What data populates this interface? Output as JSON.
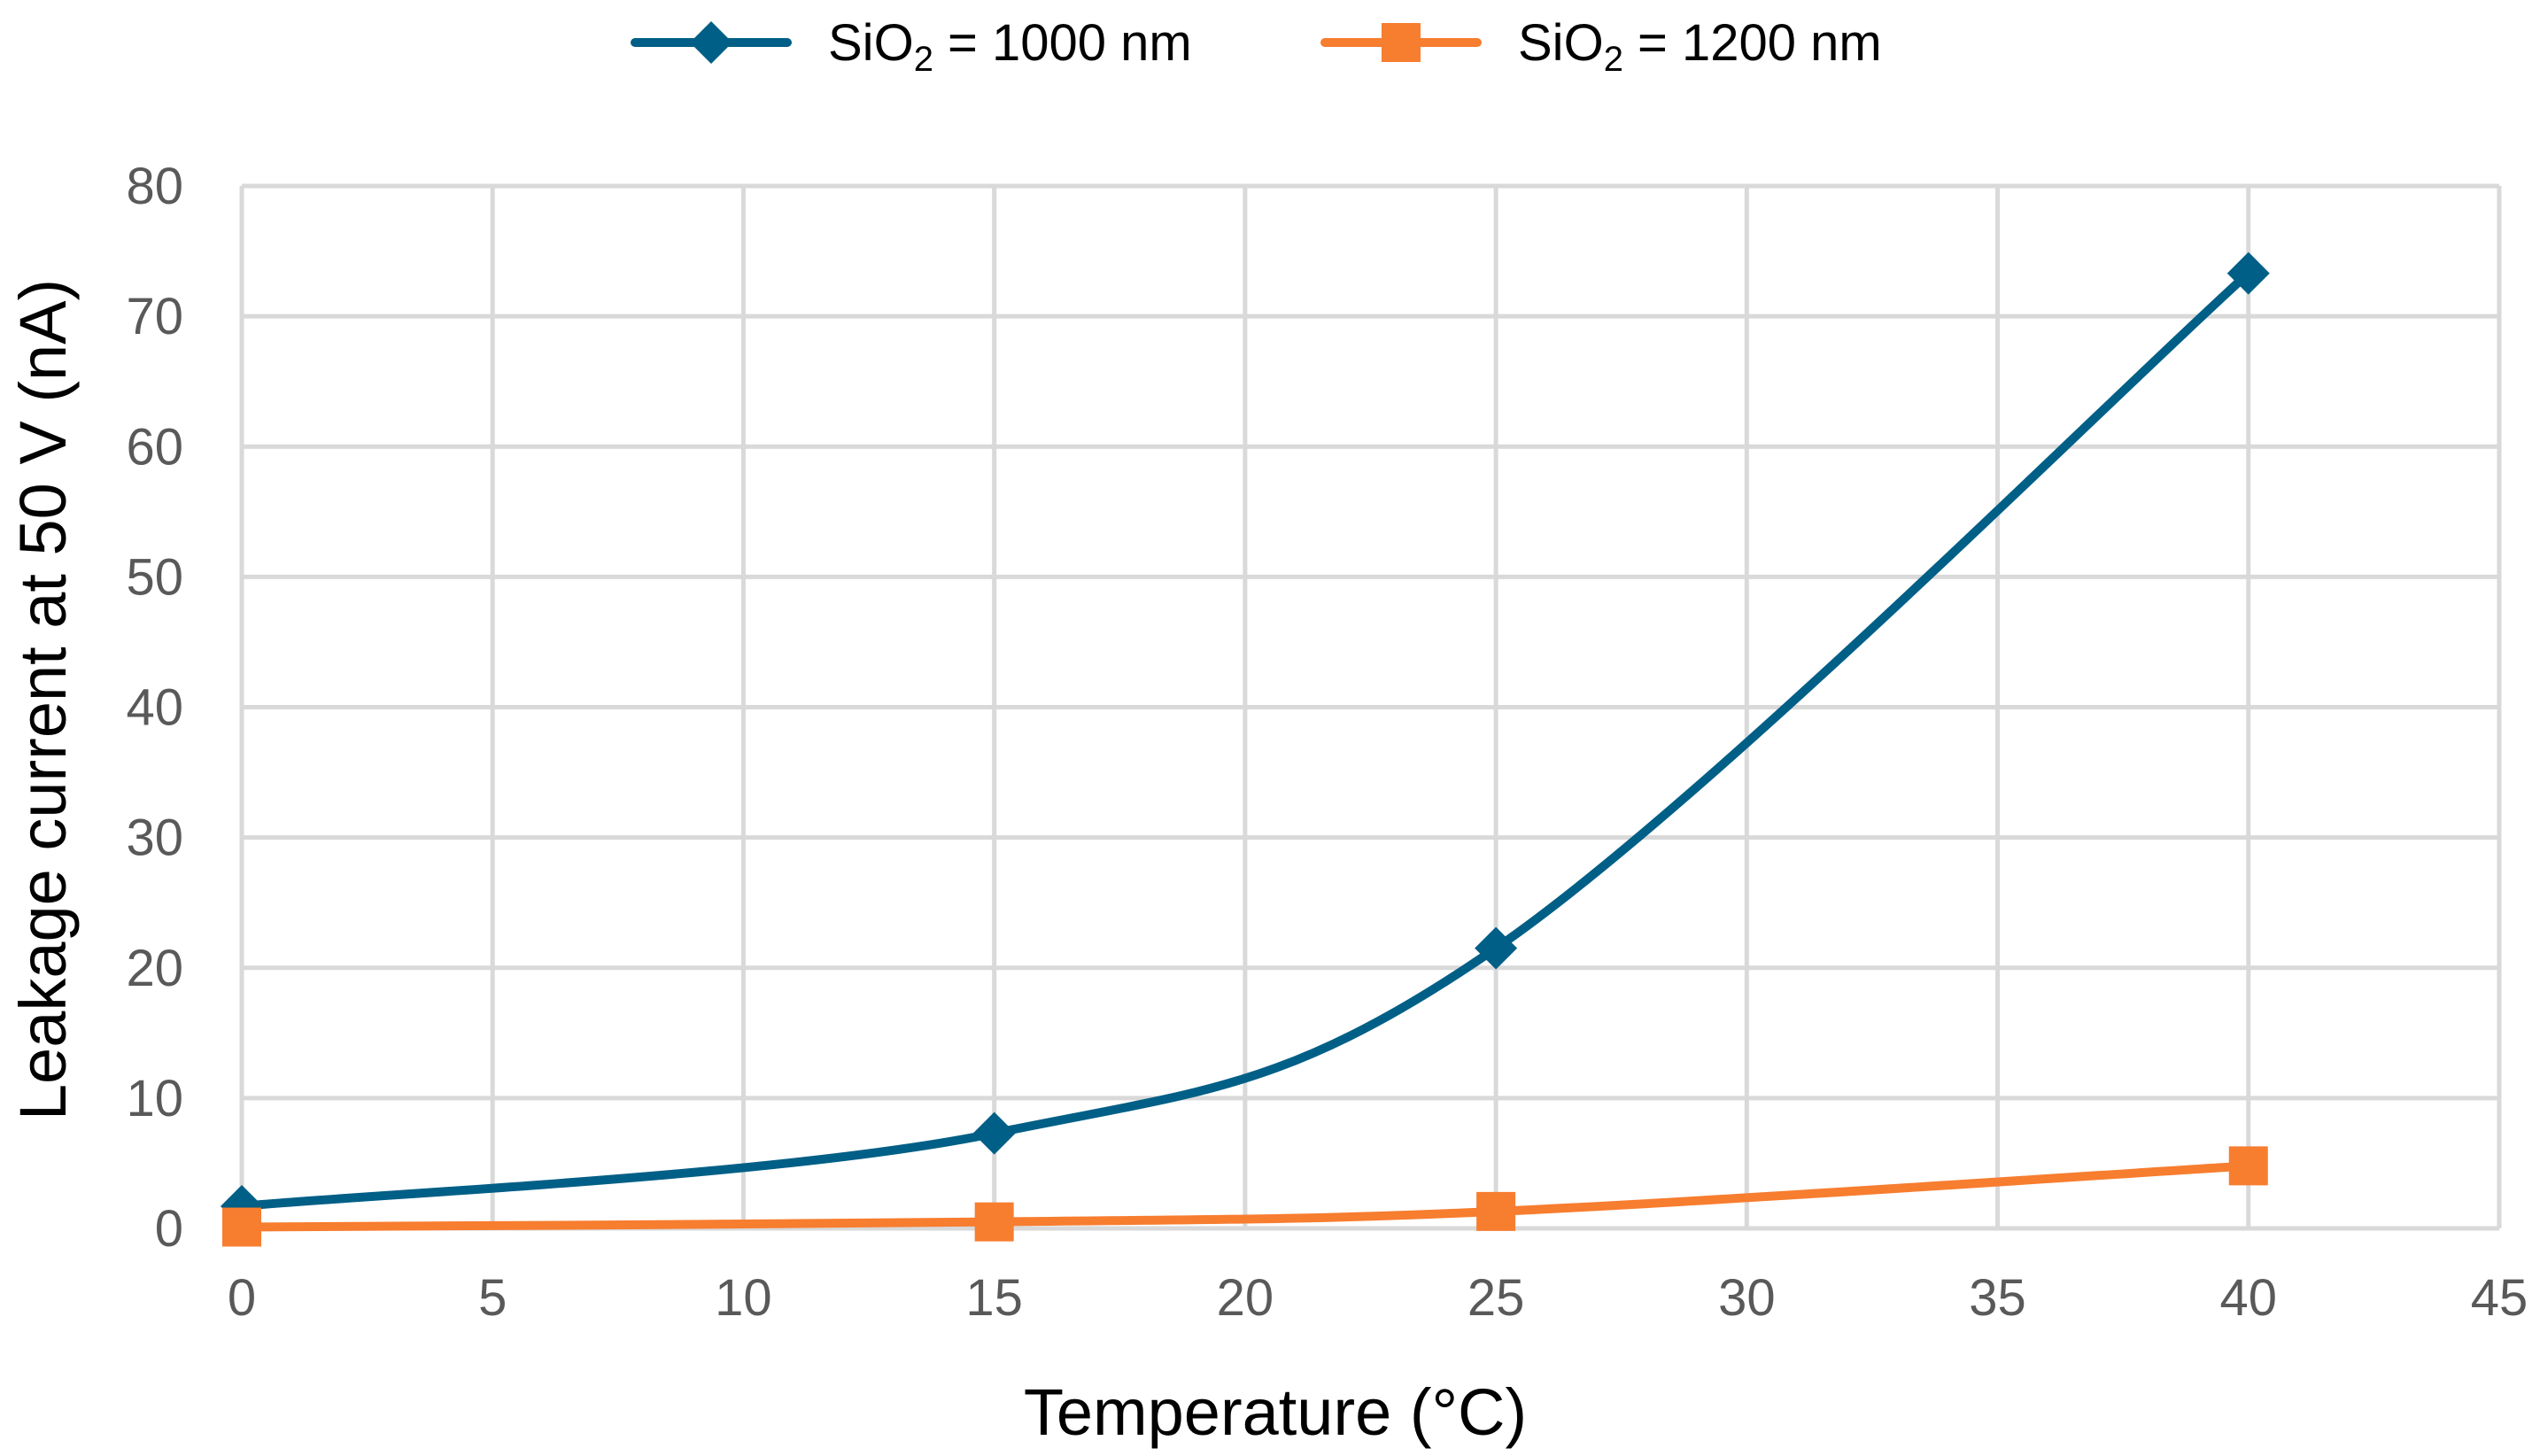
{
  "chart_data": {
    "type": "line",
    "title": "",
    "xlabel": "Temperature (°C)",
    "ylabel": "Leakage current at 50 V (nA)",
    "xlim": [
      0,
      45
    ],
    "ylim": [
      0,
      80
    ],
    "x_ticks": [
      "0",
      "5",
      "10",
      "15",
      "20",
      "25",
      "30",
      "35",
      "40",
      "45"
    ],
    "y_ticks": [
      "0",
      "10",
      "20",
      "30",
      "40",
      "50",
      "60",
      "70",
      "80"
    ],
    "grid": true,
    "smooth": true,
    "legend_position": "top-center",
    "series": [
      {
        "name": "SiO2 = 1000 nm",
        "legend": {
          "prefix": "SiO",
          "subscript": "2",
          "suffix": " = 1000 nm"
        },
        "marker": "diamond",
        "color": "#005f86",
        "x": [
          0,
          15,
          25,
          40
        ],
        "y": [
          1.7,
          7.3,
          21.5,
          73.3
        ]
      },
      {
        "name": "SiO2 = 1200 nm",
        "legend": {
          "prefix": "SiO",
          "subscript": "2",
          "suffix": " = 1200 nm"
        },
        "marker": "square",
        "color": "#f77d2f",
        "x": [
          0,
          15,
          25,
          40
        ],
        "y": [
          0.1,
          0.5,
          1.3,
          4.8
        ]
      }
    ]
  }
}
